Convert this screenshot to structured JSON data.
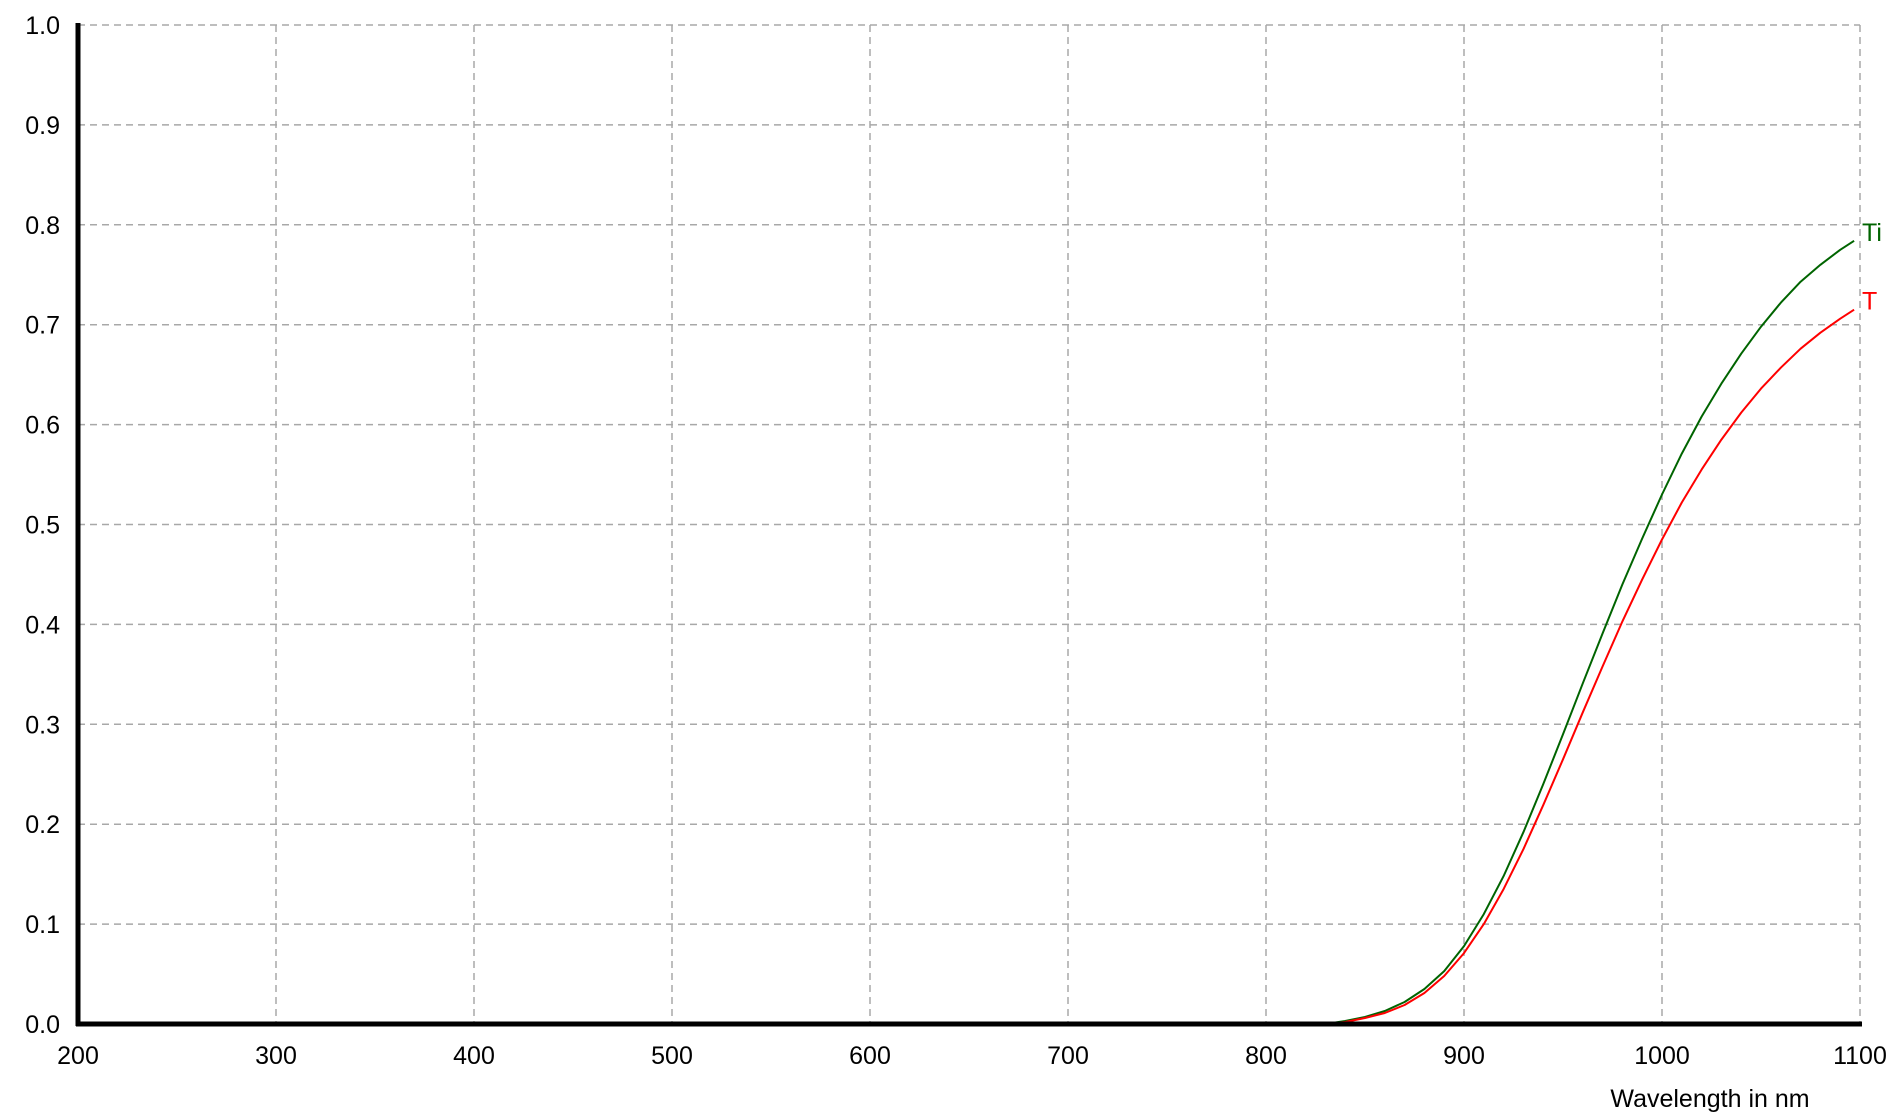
{
  "chart_data": {
    "type": "line",
    "xlabel": "Wavelength in nm",
    "ylabel": "",
    "xlim": [
      200,
      1100
    ],
    "ylim": [
      0.0,
      1.0
    ],
    "x_ticks": [
      "200",
      "300",
      "400",
      "500",
      "600",
      "700",
      "800",
      "900",
      "1000",
      "1100"
    ],
    "y_ticks": [
      "0.0",
      "0.1",
      "0.2",
      "0.3",
      "0.4",
      "0.5",
      "0.6",
      "0.7",
      "0.8",
      "0.9",
      "1.0"
    ],
    "grid": true,
    "grid_style": "dashed",
    "series": [
      {
        "name": "Ti",
        "color": "#006400",
        "x": [
          200,
          300,
          400,
          500,
          600,
          700,
          800,
          830,
          840,
          850,
          860,
          870,
          880,
          890,
          900,
          910,
          920,
          930,
          940,
          950,
          960,
          970,
          980,
          990,
          1000,
          1010,
          1020,
          1030,
          1040,
          1050,
          1060,
          1070,
          1080,
          1090,
          1097
        ],
        "y": [
          0.0,
          0.0,
          0.0,
          0.0,
          0.0,
          0.0,
          0.0,
          0.0,
          0.003,
          0.007,
          0.013,
          0.022,
          0.035,
          0.053,
          0.078,
          0.11,
          0.148,
          0.192,
          0.24,
          0.29,
          0.341,
          0.391,
          0.44,
          0.486,
          0.53,
          0.571,
          0.608,
          0.641,
          0.671,
          0.698,
          0.722,
          0.743,
          0.76,
          0.775,
          0.784
        ]
      },
      {
        "name": "T",
        "color": "#ff0000",
        "x": [
          200,
          300,
          400,
          500,
          600,
          700,
          800,
          830,
          840,
          850,
          860,
          870,
          880,
          890,
          900,
          910,
          920,
          930,
          940,
          950,
          960,
          970,
          980,
          990,
          1000,
          1010,
          1020,
          1030,
          1040,
          1050,
          1060,
          1070,
          1080,
          1090,
          1097
        ],
        "y": [
          0.0,
          0.0,
          0.0,
          0.0,
          0.0,
          0.0,
          0.0,
          0.0,
          0.002,
          0.006,
          0.011,
          0.019,
          0.031,
          0.048,
          0.071,
          0.1,
          0.135,
          0.175,
          0.219,
          0.265,
          0.312,
          0.358,
          0.403,
          0.445,
          0.485,
          0.522,
          0.555,
          0.585,
          0.612,
          0.636,
          0.657,
          0.676,
          0.692,
          0.706,
          0.715
        ]
      }
    ]
  }
}
